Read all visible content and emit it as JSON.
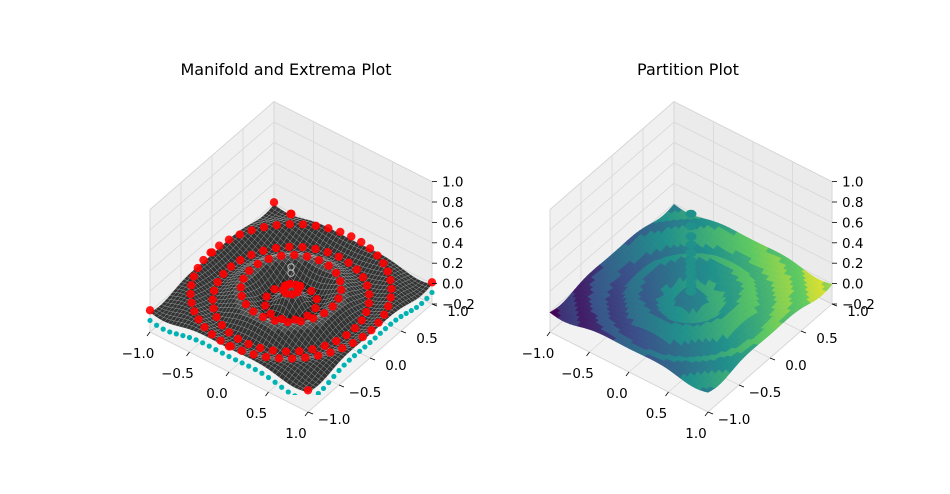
{
  "figure": {
    "background": "#ffffff"
  },
  "chart_data": [
    {
      "type": "scatter",
      "subtype": "3d-surface-with-points",
      "title": "Manifold and Extrema Plot",
      "xlabel": "",
      "ylabel": "",
      "zlabel": "",
      "xlim": [
        -1.0,
        1.0
      ],
      "ylim": [
        -1.0,
        1.0
      ],
      "zlim": [
        -0.2,
        1.0
      ],
      "x_ticks": [
        "−1.0",
        "−0.5",
        "0.0",
        "0.5",
        "1.0"
      ],
      "y_ticks": [
        "−1.0",
        "−0.5",
        "0.0",
        "0.5",
        "1.0"
      ],
      "z_ticks": [
        "−0.2",
        "0.0",
        "0.2",
        "0.4",
        "0.6",
        "0.8",
        "1.0"
      ],
      "grid": true,
      "colors": {
        "surface": "#2f2f2f",
        "surface_lines": "#cfd8d8",
        "edge_points": "#00b3b3",
        "extrema": "#ff0000"
      },
      "series": [
        {
          "kind": "surface",
          "function": "radial ripple manifold, z ≈ 0.1·cos(12r)·exp(−r)"
        },
        {
          "kind": "points",
          "extrema": [
            {
              "x": 0.0,
              "y": 0.0,
              "z": 0.82
            },
            {
              "x": 0.0,
              "y": 0.0,
              "z": 0.3
            },
            {
              "x": 0.0,
              "y": 0.0,
              "z": 0.24
            }
          ],
          "extrema_rings_radius": [
            0.08,
            0.26,
            0.5,
            0.78,
            1.0
          ]
        }
      ]
    },
    {
      "type": "scatter",
      "subtype": "3d-surface-partition",
      "title": "Partition Plot",
      "xlabel": "",
      "ylabel": "",
      "zlabel": "",
      "xlim": [
        -1.0,
        1.0
      ],
      "ylim": [
        -1.0,
        1.0
      ],
      "zlim": [
        -0.2,
        1.0
      ],
      "x_ticks": [
        "−1.0",
        "−0.5",
        "0.0",
        "0.5",
        "1.0"
      ],
      "y_ticks": [
        "−1.0",
        "−0.5",
        "0.0",
        "0.5",
        "1.0"
      ],
      "z_ticks": [
        "−0.2",
        "0.0",
        "0.2",
        "0.4",
        "0.6",
        "0.8",
        "1.0"
      ],
      "grid": true,
      "colormap": [
        "#440154",
        "#3b528b",
        "#21918c",
        "#5ec962",
        "#fde725"
      ],
      "center_column": {
        "color": "#21918c",
        "z_values": [
          0.82,
          0.7,
          0.6,
          0.52,
          0.44,
          0.36,
          0.3,
          0.24,
          0.18,
          0.12,
          0.06
        ]
      }
    }
  ]
}
